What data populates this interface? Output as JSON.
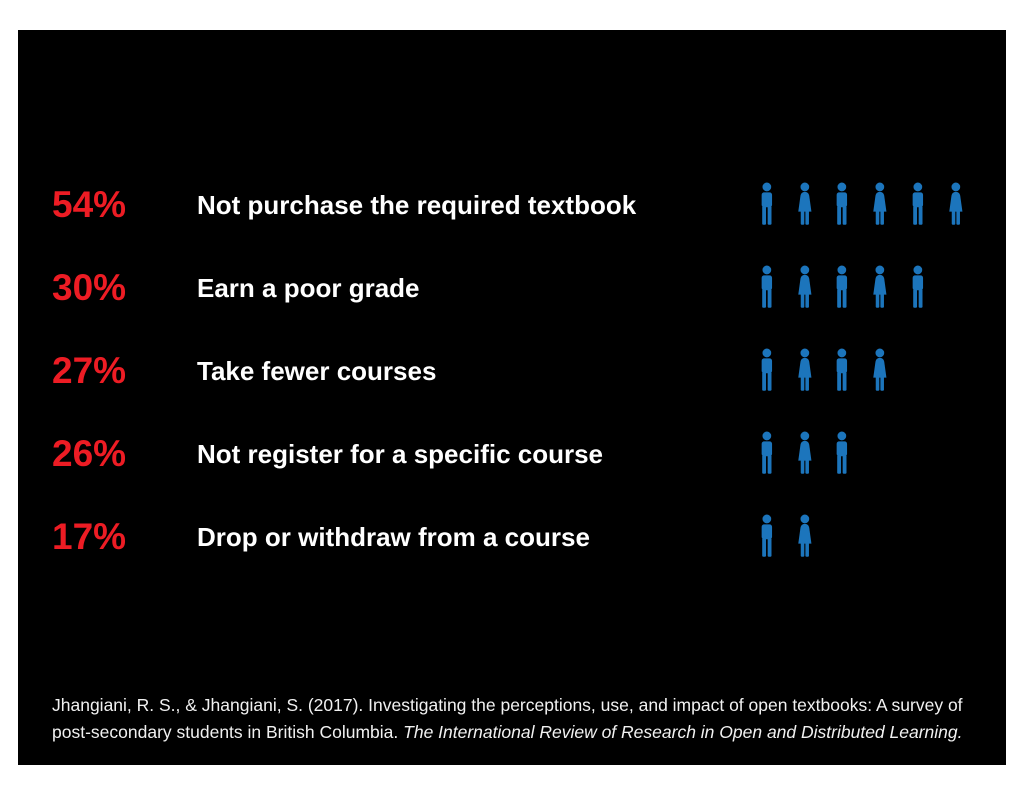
{
  "slide": {
    "background": "#000000",
    "page_background": "#ffffff",
    "text_color": "#ffffff",
    "citation_color": "#f1f1f1"
  },
  "chart_data": {
    "type": "bar",
    "subtype": "pictogram",
    "title": "",
    "categories": [
      "Not purchase the required textbook",
      "Earn a poor grade",
      "Take fewer courses",
      "Not register for a specific course",
      "Drop or withdraw from a course"
    ],
    "values": [
      54,
      30,
      27,
      26,
      17
    ],
    "display_values": [
      "54%",
      "30%",
      "27%",
      "26%",
      "17%"
    ],
    "unit": "%",
    "icon": "person",
    "icon_counts": [
      6,
      5,
      4,
      3,
      2
    ],
    "icon_sequence": [
      [
        "male",
        "female",
        "male",
        "female",
        "male",
        "female"
      ],
      [
        "male",
        "female",
        "male",
        "female",
        "male"
      ],
      [
        "male",
        "female",
        "male",
        "female"
      ],
      [
        "male",
        "female",
        "male"
      ],
      [
        "male",
        "female"
      ]
    ],
    "value_color": "#ed1c24",
    "icon_color": "#1c75bc",
    "legend": "none",
    "axes": "none"
  },
  "citation": {
    "normal": "Jhangiani, R. S., & Jhangiani, S. (2017). Investigating the perceptions, use, and impact of open textbooks: A survey of post-secondary students in British Columbia. ",
    "italic": "The International Review of Research in Open and Distributed Learning."
  }
}
